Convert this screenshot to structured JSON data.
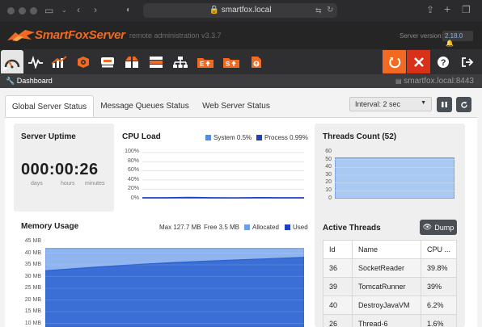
{
  "browser": {
    "url": "smartfox.local"
  },
  "header": {
    "logo_text": "SmartFoxServer",
    "subtitle": "remote administration v3.3.7",
    "server_version_label": "Server version:",
    "server_version": "2.18.0"
  },
  "toolbar": {
    "icons": [
      "dashboard-icon",
      "monitor-icon",
      "analytics-icon",
      "config-icon",
      "server-icon",
      "zone-icon",
      "bans-icon",
      "network-icon",
      "extension-deploy-icon",
      "servlet-deploy-icon",
      "file-upload-icon"
    ],
    "right": [
      "restart-icon",
      "halt-icon",
      "help-icon",
      "logout-icon"
    ],
    "colors": {
      "orange": "#f26a21",
      "red": "#d9301a"
    }
  },
  "breadcrumb": {
    "label": "Dashboard",
    "host": "smartfox.local:8443"
  },
  "tabs": [
    {
      "label": "Global Server Status"
    },
    {
      "label": "Message Queues Status"
    },
    {
      "label": "Web Server Status"
    }
  ],
  "interval": {
    "value": "Interval: 2 sec"
  },
  "uptime": {
    "title": "Server Uptime",
    "value": "000:00:26",
    "units": [
      "days",
      "hours",
      "minutes"
    ]
  },
  "cpu": {
    "title": "CPU Load",
    "system_legend": "System 0.5%",
    "process_legend": "Process 0.99%",
    "yticks": [
      "100%",
      "80%",
      "60%",
      "40%",
      "20%",
      "0%"
    ]
  },
  "threads_count": {
    "title": "Threads Count (52)",
    "yticks": [
      "60",
      "50",
      "40",
      "30",
      "20",
      "10",
      "0"
    ]
  },
  "memory": {
    "title": "Memory Usage",
    "max": "Max 127.7 MB",
    "free": "Free 3.5 MB",
    "allocated_legend": "Allocated",
    "used_legend": "Used",
    "yticks": [
      "45 MB",
      "40 MB",
      "35 MB",
      "30 MB",
      "25 MB",
      "20 MB",
      "15 MB",
      "10 MB"
    ]
  },
  "active_threads": {
    "title": "Active Threads",
    "dump_label": "Dump",
    "columns": [
      "Id",
      "Name",
      "CPU ..."
    ],
    "rows": [
      {
        "id": "36",
        "name": "SocketReader",
        "cpu": "39.8%"
      },
      {
        "id": "39",
        "name": "TomcatRunner",
        "cpu": "39%"
      },
      {
        "id": "40",
        "name": "DestroyJavaVM",
        "cpu": "6.2%"
      },
      {
        "id": "26",
        "name": "Thread-6",
        "cpu": "1.6%"
      }
    ]
  },
  "chart_data": [
    {
      "type": "line",
      "title": "CPU Load",
      "ylim": [
        0,
        100
      ],
      "series": [
        {
          "name": "System",
          "color": "#4f8fe6",
          "values": [
            0.6,
            0.5,
            0.5,
            0.6,
            0.5,
            0.5,
            0.5,
            0.5
          ]
        },
        {
          "name": "Process",
          "color": "#1f3fbf",
          "values": [
            1.0,
            1.1,
            1.8,
            1.0,
            0.9,
            1.2,
            1.0,
            0.99
          ]
        }
      ]
    },
    {
      "type": "area",
      "title": "Threads Count (52)",
      "ylim": [
        0,
        60
      ],
      "series": [
        {
          "values": [
            52,
            52,
            52,
            52,
            52,
            52,
            52
          ]
        }
      ]
    },
    {
      "type": "area",
      "title": "Memory Usage",
      "ylim": [
        10,
        45
      ],
      "series": [
        {
          "name": "Allocated",
          "color": "#6e9ee8",
          "values": [
            42,
            42,
            42,
            42,
            42,
            42,
            42
          ]
        },
        {
          "name": "Used",
          "color": "#2b5fcf",
          "values": [
            32.5,
            33.8,
            35,
            36,
            36.8,
            37.5,
            38.2
          ]
        }
      ]
    }
  ]
}
